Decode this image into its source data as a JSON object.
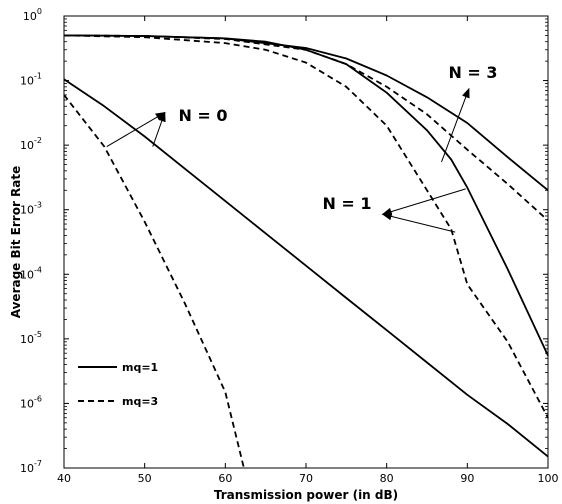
{
  "chart_data": {
    "type": "line",
    "xlabel": "Transmission power (in dB)",
    "ylabel": "Average Bit Error Rate",
    "xlim": [
      40,
      100
    ],
    "ylim": [
      1e-07,
      1
    ],
    "yscale": "log",
    "x_ticks": [
      40,
      50,
      60,
      70,
      80,
      90,
      100
    ],
    "y_tick_labels": [
      {
        "value": 1,
        "base": "10",
        "exp": "0"
      },
      {
        "value": 0.1,
        "base": "10",
        "exp": "-1"
      },
      {
        "value": 0.01,
        "base": "10",
        "exp": "-2"
      },
      {
        "value": 0.001,
        "base": "10",
        "exp": "-3"
      },
      {
        "value": 0.0001,
        "base": "10",
        "exp": "-4"
      },
      {
        "value": 1e-05,
        "base": "10",
        "exp": "-5"
      },
      {
        "value": 1e-06,
        "base": "10",
        "exp": "-6"
      },
      {
        "value": 1e-07,
        "base": "10",
        "exp": "-7"
      }
    ],
    "legend": {
      "position": "bottom-left",
      "entries": [
        {
          "label": "mq=1",
          "style": "solid"
        },
        {
          "label": "mq=3",
          "style": "dashed"
        }
      ]
    },
    "series": [
      {
        "group": "N = 0",
        "style": "solid",
        "x": [
          40,
          45,
          50,
          55,
          60,
          65,
          70,
          75,
          80,
          85,
          90,
          95,
          100
        ],
        "y": [
          0.105,
          0.04,
          0.0136,
          0.0043,
          0.00136,
          0.00043,
          0.000136,
          4.3e-05,
          1.36e-05,
          4.3e-06,
          1.36e-06,
          4.8e-07,
          1.5e-07
        ]
      },
      {
        "group": "N = 0",
        "style": "dashed",
        "x": [
          40,
          45,
          50,
          55,
          60,
          62.3
        ],
        "y": [
          0.06,
          0.0095,
          0.00065,
          3.5e-05,
          1.5e-06,
          1e-07
        ]
      },
      {
        "group": "N = 1",
        "style": "solid",
        "x": [
          40,
          50,
          60,
          65,
          70,
          75,
          80,
          85,
          88,
          90,
          95,
          100
        ],
        "y": [
          0.5,
          0.49,
          0.45,
          0.4,
          0.3,
          0.18,
          0.065,
          0.017,
          0.006,
          0.0022,
          0.00012,
          5.5e-06
        ]
      },
      {
        "group": "N = 1",
        "style": "dashed",
        "x": [
          40,
          50,
          60,
          65,
          70,
          75,
          80,
          85,
          88,
          90,
          95,
          100
        ],
        "y": [
          0.5,
          0.47,
          0.38,
          0.3,
          0.19,
          0.08,
          0.02,
          0.002,
          0.0005,
          7e-05,
          9e-06,
          6e-07
        ]
      },
      {
        "group": "N = 3",
        "style": "solid",
        "x": [
          40,
          50,
          60,
          70,
          75,
          80,
          85,
          90,
          95,
          100
        ],
        "y": [
          0.5,
          0.49,
          0.45,
          0.32,
          0.22,
          0.12,
          0.055,
          0.022,
          0.0065,
          0.002
        ]
      },
      {
        "group": "N = 3",
        "style": "dashed",
        "x": [
          40,
          50,
          60,
          70,
          75,
          80,
          85,
          90,
          95,
          100
        ],
        "y": [
          0.5,
          0.49,
          0.44,
          0.3,
          0.18,
          0.08,
          0.03,
          0.0085,
          0.0025,
          0.00068
        ]
      }
    ],
    "annotations": [
      {
        "text": "N = 0",
        "arrows_from": [
          [
            45.3,
            0.0095
          ],
          [
            51.0,
            0.0095
          ]
        ],
        "arrow_tip": [
          52.5,
          0.032
        ]
      },
      {
        "text": "N = 1",
        "arrows_from": [
          [
            89.8,
            0.0021
          ],
          [
            88.5,
            0.00045
          ]
        ],
        "arrow_tip": [
          79.5,
          0.00085
        ]
      },
      {
        "text": "N = 3",
        "arrows_from": [
          [
            86.8,
            0.0055
          ]
        ],
        "arrow_tip": [
          90.2,
          0.075
        ]
      }
    ]
  }
}
